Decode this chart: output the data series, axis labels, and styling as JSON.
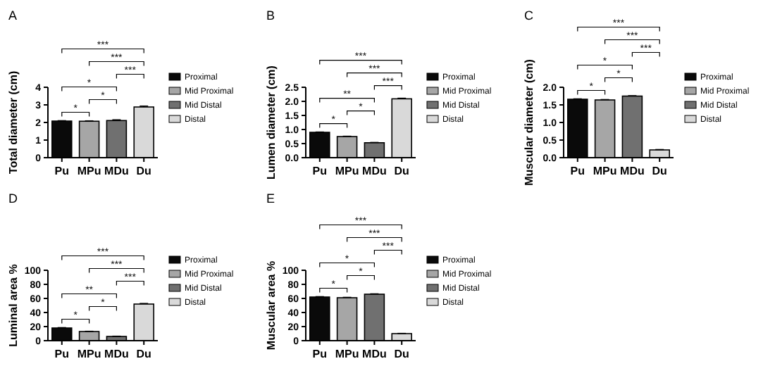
{
  "chart_data": [
    {
      "type": "bar",
      "title": "A",
      "ylabel": "Total diameter (cm)",
      "categories": [
        "Pu",
        "MPu",
        "MDu",
        "Du"
      ],
      "legend": "right",
      "ylim": [
        0,
        4
      ],
      "yticks": [
        0,
        1,
        2,
        3,
        4
      ],
      "series": [
        {
          "name": "Proximal",
          "color": "#0a0a0a",
          "values": [
            2.08,
            null,
            null,
            null
          ],
          "errors": [
            0.02,
            null,
            null,
            null
          ]
        },
        {
          "name": "Mid Proximal",
          "color": "#a6a6a6",
          "values": [
            null,
            2.07,
            null,
            null
          ],
          "errors": [
            null,
            0.02,
            null,
            null
          ]
        },
        {
          "name": "Mid Distal",
          "color": "#707070",
          "values": [
            null,
            null,
            2.11,
            null
          ],
          "errors": [
            null,
            null,
            0.04,
            null
          ]
        },
        {
          "name": "Distal",
          "color": "#d9d9d9",
          "values": [
            null,
            null,
            null,
            2.88
          ],
          "errors": [
            null,
            null,
            null,
            0.05
          ]
        }
      ],
      "annotations": [
        "*",
        "*",
        "*",
        "***",
        "***",
        "***"
      ]
    },
    {
      "type": "bar",
      "title": "B",
      "ylabel": "Lumen diameter (cm)",
      "categories": [
        "Pu",
        "MPu",
        "MDu",
        "Du"
      ],
      "legend": "right",
      "ylim": [
        0,
        2.5
      ],
      "yticks": [
        {
          "value": 0,
          "label": "0.0"
        },
        {
          "value": 0.5,
          "label": "0.5"
        },
        {
          "value": 1,
          "label": "1.0"
        },
        {
          "value": 1.5,
          "label": "1.5"
        },
        {
          "value": 2,
          "label": "2.0"
        },
        {
          "value": 2.5,
          "label": "2.5"
        }
      ],
      "series": [
        {
          "name": "Proximal",
          "color": "#0a0a0a",
          "values": [
            0.9,
            null,
            null,
            null
          ],
          "errors": [
            0.01,
            null,
            null,
            null
          ]
        },
        {
          "name": "Mid Proximal",
          "color": "#a6a6a6",
          "values": [
            null,
            0.75,
            null,
            null
          ],
          "errors": [
            null,
            0.01,
            null,
            null
          ]
        },
        {
          "name": "Mid Distal",
          "color": "#707070",
          "values": [
            null,
            null,
            0.53,
            null
          ],
          "errors": [
            null,
            null,
            0.01,
            null
          ]
        },
        {
          "name": "Distal",
          "color": "#d9d9d9",
          "values": [
            null,
            null,
            null,
            2.09
          ],
          "errors": [
            null,
            null,
            null,
            0.02
          ]
        }
      ],
      "annotations": [
        "*",
        "*",
        "**",
        "***",
        "***",
        "***"
      ]
    },
    {
      "type": "bar",
      "title": "C",
      "ylabel": "Muscular diameter (cm)",
      "categories": [
        "Pu",
        "MPu",
        "MDu",
        "Du"
      ],
      "legend": "right",
      "ylim": [
        0,
        2
      ],
      "yticks": [
        {
          "value": 0,
          "label": "0.0"
        },
        {
          "value": 0.5,
          "label": "0.5"
        },
        {
          "value": 1,
          "label": "1.0"
        },
        {
          "value": 1.5,
          "label": "1.5"
        },
        {
          "value": 2,
          "label": "2.0"
        }
      ],
      "series": [
        {
          "name": "Proximal",
          "color": "#0a0a0a",
          "values": [
            1.66,
            null,
            null,
            null
          ],
          "errors": [
            0.01,
            null,
            null,
            null
          ]
        },
        {
          "name": "Mid Proximal",
          "color": "#a6a6a6",
          "values": [
            null,
            1.64,
            null,
            null
          ],
          "errors": [
            null,
            0.01,
            null,
            null
          ]
        },
        {
          "name": "Mid Distal",
          "color": "#707070",
          "values": [
            null,
            null,
            1.75,
            null
          ],
          "errors": [
            null,
            null,
            0.01,
            null
          ]
        },
        {
          "name": "Distal",
          "color": "#d9d9d9",
          "values": [
            null,
            null,
            null,
            0.22
          ],
          "errors": [
            null,
            null,
            null,
            0.01
          ]
        }
      ],
      "annotations": [
        "*",
        "*",
        "*",
        "***",
        "***",
        "***"
      ]
    },
    {
      "type": "bar",
      "title": "D",
      "ylabel": "Luminal area %",
      "categories": [
        "Pu",
        "MPu",
        "MDu",
        "Du"
      ],
      "legend": "right",
      "ylim": [
        0,
        100
      ],
      "yticks": [
        0,
        20,
        40,
        60,
        80,
        100
      ],
      "series": [
        {
          "name": "Proximal",
          "color": "#0a0a0a",
          "values": [
            18,
            null,
            null,
            null
          ],
          "errors": [
            0.5,
            null,
            null,
            null
          ]
        },
        {
          "name": "Mid Proximal",
          "color": "#a6a6a6",
          "values": [
            null,
            13,
            null,
            null
          ],
          "errors": [
            null,
            0.3,
            null,
            null
          ]
        },
        {
          "name": "Mid Distal",
          "color": "#707070",
          "values": [
            null,
            null,
            6,
            null
          ],
          "errors": [
            null,
            null,
            0.3,
            null
          ]
        },
        {
          "name": "Distal",
          "color": "#d9d9d9",
          "values": [
            null,
            null,
            null,
            52
          ],
          "errors": [
            null,
            null,
            null,
            0.8
          ]
        }
      ],
      "annotations": [
        "*",
        "*",
        "**",
        "***",
        "***",
        "***"
      ]
    },
    {
      "type": "bar",
      "title": "E",
      "ylabel": "Muscular area %",
      "categories": [
        "Pu",
        "MPu",
        "MDu",
        "Du"
      ],
      "legend": "right",
      "ylim": [
        0,
        100
      ],
      "yticks": [
        0,
        20,
        40,
        60,
        80,
        100
      ],
      "series": [
        {
          "name": "Proximal",
          "color": "#0a0a0a",
          "values": [
            62,
            null,
            null,
            null
          ],
          "errors": [
            0.5,
            null,
            null,
            null
          ]
        },
        {
          "name": "Mid Proximal",
          "color": "#a6a6a6",
          "values": [
            null,
            61,
            null,
            null
          ],
          "errors": [
            null,
            0.5,
            null,
            null
          ]
        },
        {
          "name": "Mid Distal",
          "color": "#707070",
          "values": [
            null,
            null,
            66,
            null
          ],
          "errors": [
            null,
            null,
            0.5,
            null
          ]
        },
        {
          "name": "Distal",
          "color": "#d9d9d9",
          "values": [
            null,
            null,
            null,
            10
          ],
          "errors": [
            null,
            null,
            null,
            0.3
          ]
        }
      ],
      "annotations": [
        "*",
        "*",
        "*",
        "***",
        "***",
        "***"
      ]
    }
  ]
}
